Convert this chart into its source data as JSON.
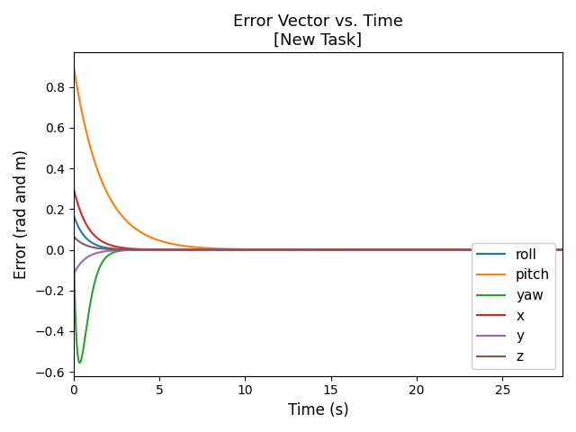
{
  "title_line1": "Error Vector vs. Time",
  "title_line2": "[New Task]",
  "xlabel": "Time (s)",
  "ylabel": "Error (rad and m)",
  "xlim": [
    0,
    28.5
  ],
  "ylim": [
    -0.62,
    0.97
  ],
  "series": [
    {
      "label": "roll",
      "color": "#1f77b4",
      "init": 0.17,
      "decay": 1.5,
      "type": "decay"
    },
    {
      "label": "pitch",
      "color": "#ff7f0e",
      "init": 0.9,
      "decay": 0.6,
      "type": "decay"
    },
    {
      "label": "yaw",
      "color": "#2ca02c",
      "peak_neg": -0.555,
      "peak_time": 0.35,
      "type": "neg_peak"
    },
    {
      "label": "x",
      "color": "#d62728",
      "init": 0.3,
      "decay": 1.2,
      "type": "decay"
    },
    {
      "label": "y",
      "color": "#9467bd",
      "init": -0.12,
      "decay": 1.5,
      "type": "decay"
    },
    {
      "label": "z",
      "color": "#8c564b",
      "init": 0.065,
      "decay": 1.5,
      "type": "decay"
    }
  ],
  "xticks": [
    0,
    5,
    10,
    15,
    20,
    25
  ],
  "yticks": [
    -0.6,
    -0.4,
    -0.2,
    0.0,
    0.2,
    0.4,
    0.6,
    0.8
  ],
  "legend_loc": "lower right",
  "figsize": [
    6.4,
    4.8
  ],
  "dpi": 100
}
